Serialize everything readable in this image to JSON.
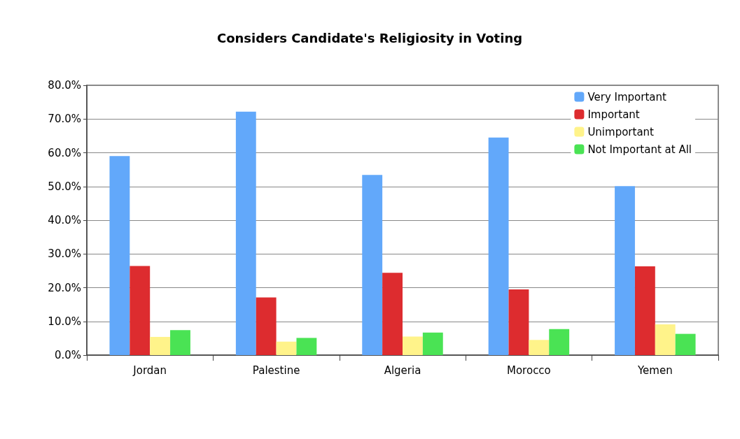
{
  "chart_data": {
    "type": "bar",
    "title": "Considers Candidate's Religiosity in Voting",
    "categories": [
      "Jordan",
      "Palestine",
      "Algeria",
      "Morocco",
      "Yemen"
    ],
    "series": [
      {
        "name": "Very Important",
        "color": "#62a8fa",
        "values": [
          59.0,
          72.2,
          53.4,
          64.5,
          50.1
        ]
      },
      {
        "name": "Important",
        "color": "#dd2c2f",
        "values": [
          26.4,
          17.1,
          24.4,
          19.5,
          26.3
        ]
      },
      {
        "name": "Unimportant",
        "color": "#fff38a",
        "values": [
          5.4,
          4.0,
          5.5,
          4.5,
          9.1
        ]
      },
      {
        "name": "Not Important at All",
        "color": "#4ae354",
        "values": [
          7.4,
          5.1,
          6.7,
          7.7,
          6.3
        ]
      }
    ],
    "ylim": [
      0,
      80
    ],
    "yticks": [
      {
        "value": 0,
        "label": "0.0%"
      },
      {
        "value": 10,
        "label": "10.0%"
      },
      {
        "value": 20,
        "label": "20.0%"
      },
      {
        "value": 30,
        "label": "30.0%"
      },
      {
        "value": 40,
        "label": "40.0%"
      },
      {
        "value": 50,
        "label": "50.0%"
      },
      {
        "value": 60,
        "label": "60.0%"
      },
      {
        "value": 70,
        "label": "70.0%"
      },
      {
        "value": 80,
        "label": "80.0%"
      }
    ],
    "grid": "y",
    "legend": "top right"
  }
}
